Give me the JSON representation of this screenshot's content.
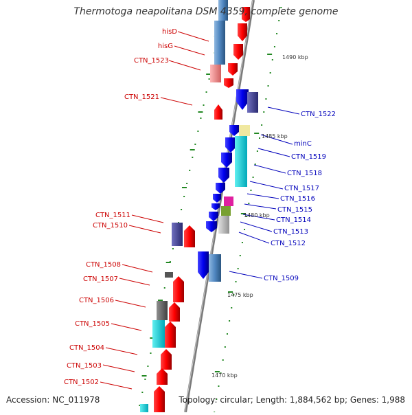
{
  "title": "Thermotoga neapolitana DSM 4359, complete genome",
  "accession_text": "Accession: NC_011978",
  "summary_text": "Topology: circular; Length: 1,884,562 bp; Genes: 1,988",
  "colors": {
    "left_label": "#cc0000",
    "right_label": "#0000bb",
    "tick": "#228822",
    "backbone": "#888888"
  },
  "scale_labels": [
    "1490 kbp",
    "1485 kbp",
    "1480 kbp",
    "1475 kbp",
    "1470 kbp"
  ],
  "left_labels": [
    "hisD",
    "hisG",
    "CTN_1523",
    "CTN_1521",
    "CTN_1511",
    "CTN_1510",
    "CTN_1508",
    "CTN_1507",
    "CTN_1506",
    "CTN_1505",
    "CTN_1504",
    "CTN_1503",
    "CTN_1502"
  ],
  "right_labels": [
    "CTN_1522",
    "minC",
    "CTN_1519",
    "CTN_1518",
    "CTN_1517",
    "CTN_1516",
    "CTN_1515",
    "CTN_1514",
    "CTN_1513",
    "CTN_1512",
    "CTN_1509"
  ]
}
